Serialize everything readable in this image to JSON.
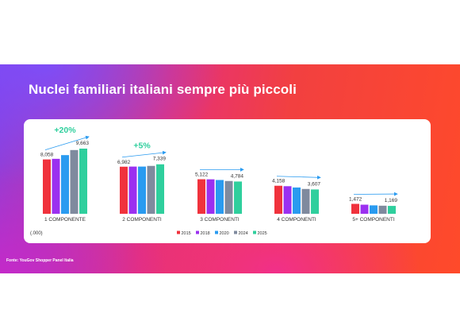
{
  "slide": {
    "title": "Nuclei familiari italiani sempre più piccoli",
    "source": "Fonte: YouGov Shopper Panel Italia"
  },
  "chart_data": {
    "type": "bar",
    "unit_note": "(.000)",
    "categories": [
      "1 COMPONENTE",
      "2 COMPONENTI",
      "3 COMPONENTI",
      "4 COMPONENTI",
      "5+ COMPONENTI"
    ],
    "series": [
      {
        "name": "2015",
        "color": "#f0323c",
        "values": [
          8058,
          6982,
          5122,
          4158,
          1472
        ]
      },
      {
        "name": "2018",
        "color": "#9b30f0",
        "values": [
          8150,
          7000,
          5110,
          4090,
          1350
        ]
      },
      {
        "name": "2020",
        "color": "#2a9bf0",
        "values": [
          8700,
          7000,
          5010,
          3900,
          1250
        ]
      },
      {
        "name": "2024",
        "color": "#7f8a9e",
        "values": [
          9450,
          7100,
          4860,
          3680,
          1200
        ]
      },
      {
        "name": "2025",
        "color": "#2fcf9d",
        "values": [
          9663,
          7339,
          4784,
          3607,
          1169
        ]
      }
    ],
    "data_labels": [
      {
        "category": "1 COMPONENTE",
        "first": "8,058",
        "last": "9,663",
        "change": "+20%"
      },
      {
        "category": "2 COMPONENTI",
        "first": "6,982",
        "last": "7,339",
        "change": "+5%"
      },
      {
        "category": "3 COMPONENTI",
        "first": "5,122",
        "last": "4,784",
        "change": ""
      },
      {
        "category": "4 COMPONENTI",
        "first": "4,158",
        "last": "3,607",
        "change": ""
      },
      {
        "category": "5+ COMPONENTI",
        "first": "1,472",
        "last": "1,169",
        "change": ""
      }
    ],
    "change_color": "#2fcf9d",
    "arrow_color": "#2a9bf0",
    "ylim": [
      0,
      12000
    ],
    "grid": false,
    "legend_position": "bottom-center"
  }
}
